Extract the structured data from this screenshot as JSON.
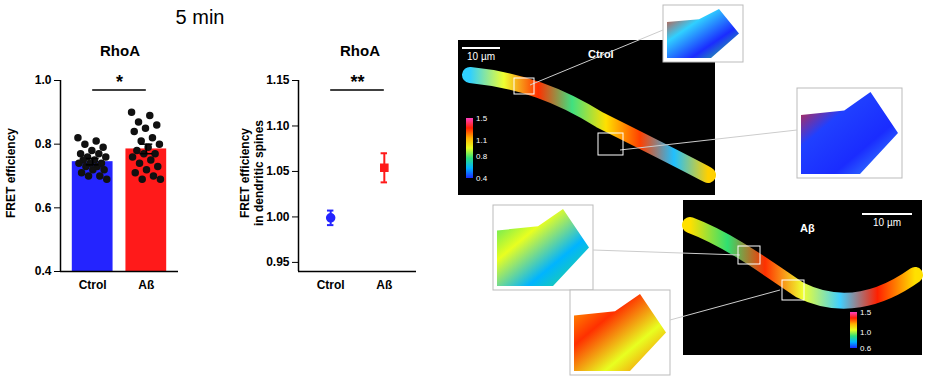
{
  "title": "5 min",
  "chart_data": [
    {
      "type": "bar",
      "title": "RhoA",
      "y_label": "FRET efficiency",
      "categories": [
        "Ctrol",
        "Aß"
      ],
      "values": [
        0.745,
        0.785
      ],
      "errors": [
        0.01,
        0.015
      ],
      "colors": [
        "#2424ff",
        "#ff1a1a"
      ],
      "points": [
        [
          0.82,
          0.81,
          0.8,
          0.79,
          0.78,
          0.77,
          0.77,
          0.76,
          0.76,
          0.75,
          0.75,
          0.74,
          0.74,
          0.74,
          0.73,
          0.73,
          0.72,
          0.72,
          0.71,
          0.7,
          0.7,
          0.69
        ],
        [
          0.9,
          0.89,
          0.87,
          0.86,
          0.85,
          0.84,
          0.82,
          0.81,
          0.8,
          0.79,
          0.78,
          0.77,
          0.77,
          0.76,
          0.75,
          0.74,
          0.73,
          0.72,
          0.71,
          0.7,
          0.69,
          0.69
        ]
      ],
      "ylim": [
        0.4,
        1.0
      ],
      "yticks": [
        0.4,
        0.6,
        0.8,
        {
          "value": 1.0,
          "label": "1.0"
        }
      ],
      "annotation": "*"
    },
    {
      "type": "scatter",
      "title": "RhoA",
      "y_label": "FRET efficiency\nin dendritic spines",
      "categories": [
        "Ctrol",
        "Aß"
      ],
      "series": [
        {
          "name": "Ctrol",
          "color": "#2424ff",
          "marker": "circle",
          "values": [
            0.999,
            null
          ],
          "errors": [
            0.008,
            null
          ]
        },
        {
          "name": "Aß",
          "color": "#ff1a1a",
          "marker": "square",
          "values": [
            null,
            1.054
          ],
          "errors": [
            null,
            0.016
          ]
        }
      ],
      "ylim": [
        0.94,
        1.15
      ],
      "yticks": [
        0.95,
        {
          "value": 1.0,
          "label": "1.00"
        },
        1.05,
        {
          "value": 1.1,
          "label": "1.10"
        },
        1.15
      ],
      "annotation": "**"
    }
  ],
  "images": [
    {
      "label": "Ctrol",
      "scale_bar": "10 µm",
      "colorbar_ticks": [
        1.5,
        1.1,
        0.8,
        0.4
      ]
    },
    {
      "label": "Aβ",
      "scale_bar": "10 µm",
      "colorbar_ticks": [
        1.5,
        {
          "value": 1.0,
          "label": "1.0"
        },
        0.6
      ]
    }
  ]
}
